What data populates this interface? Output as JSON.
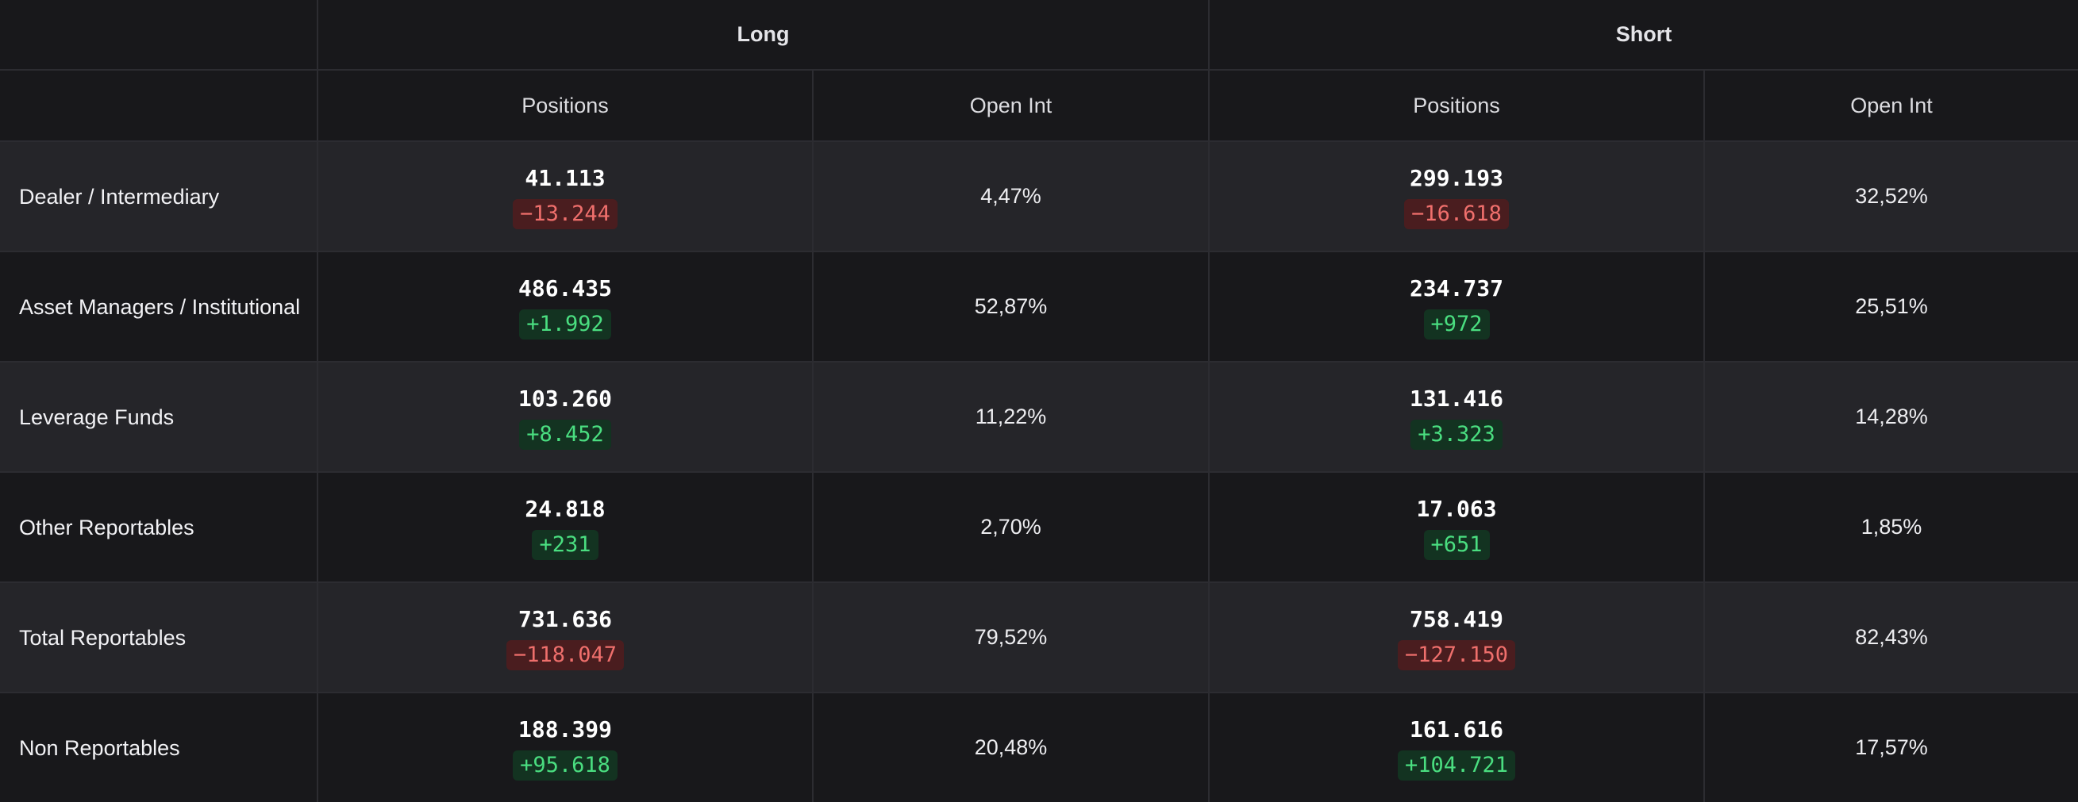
{
  "header": {
    "long": "Long",
    "short": "Short",
    "positions": "Positions",
    "open_int": "Open Int"
  },
  "colors": {
    "negative_text": "#ef6f6c",
    "negative_bg": "#4a1d1f",
    "positive_text": "#4ade80",
    "positive_bg": "#133321"
  },
  "rows": [
    {
      "label": "Dealer / Intermediary",
      "long": {
        "positions": "41.113",
        "change": "−13.244",
        "change_sign": "neg",
        "open_int": "4,47%"
      },
      "short": {
        "positions": "299.193",
        "change": "−16.618",
        "change_sign": "neg",
        "open_int": "32,52%"
      }
    },
    {
      "label": "Asset Managers / Institutional",
      "long": {
        "positions": "486.435",
        "change": "+1.992",
        "change_sign": "pos",
        "open_int": "52,87%"
      },
      "short": {
        "positions": "234.737",
        "change": "+972",
        "change_sign": "pos",
        "open_int": "25,51%"
      }
    },
    {
      "label": "Leverage Funds",
      "long": {
        "positions": "103.260",
        "change": "+8.452",
        "change_sign": "pos",
        "open_int": "11,22%"
      },
      "short": {
        "positions": "131.416",
        "change": "+3.323",
        "change_sign": "pos",
        "open_int": "14,28%"
      }
    },
    {
      "label": "Other Reportables",
      "long": {
        "positions": "24.818",
        "change": "+231",
        "change_sign": "pos",
        "open_int": "2,70%"
      },
      "short": {
        "positions": "17.063",
        "change": "+651",
        "change_sign": "pos",
        "open_int": "1,85%"
      }
    },
    {
      "label": "Total Reportables",
      "long": {
        "positions": "731.636",
        "change": "−118.047",
        "change_sign": "neg",
        "open_int": "79,52%"
      },
      "short": {
        "positions": "758.419",
        "change": "−127.150",
        "change_sign": "neg",
        "open_int": "82,43%"
      }
    },
    {
      "label": "Non Reportables",
      "long": {
        "positions": "188.399",
        "change": "+95.618",
        "change_sign": "pos",
        "open_int": "20,48%"
      },
      "short": {
        "positions": "161.616",
        "change": "+104.721",
        "change_sign": "pos",
        "open_int": "17,57%"
      }
    }
  ]
}
